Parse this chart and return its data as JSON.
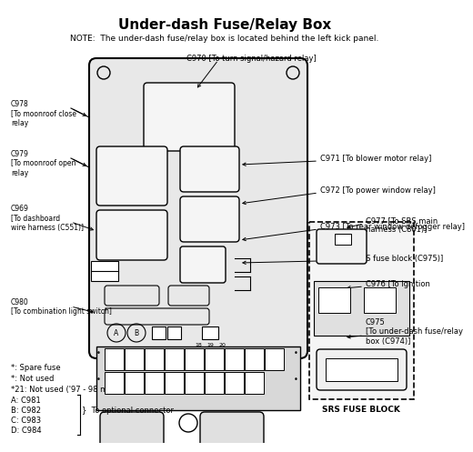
{
  "title": "Under-dash Fuse/Relay Box",
  "note": "NOTE:  The under-dash fuse/relay box is located behind the left kick panel.",
  "bg_color": "#ffffff",
  "line_color": "#000000",
  "text_color": "#000000",
  "legend_lines": [
    "*: Spare fuse",
    "*: Not used",
    "*21: Not used ('97 - 98 models)",
    "A: C981",
    "B: C982",
    "C: C983",
    "D: C984"
  ],
  "srs_label": "SRS FUSE BLOCK"
}
